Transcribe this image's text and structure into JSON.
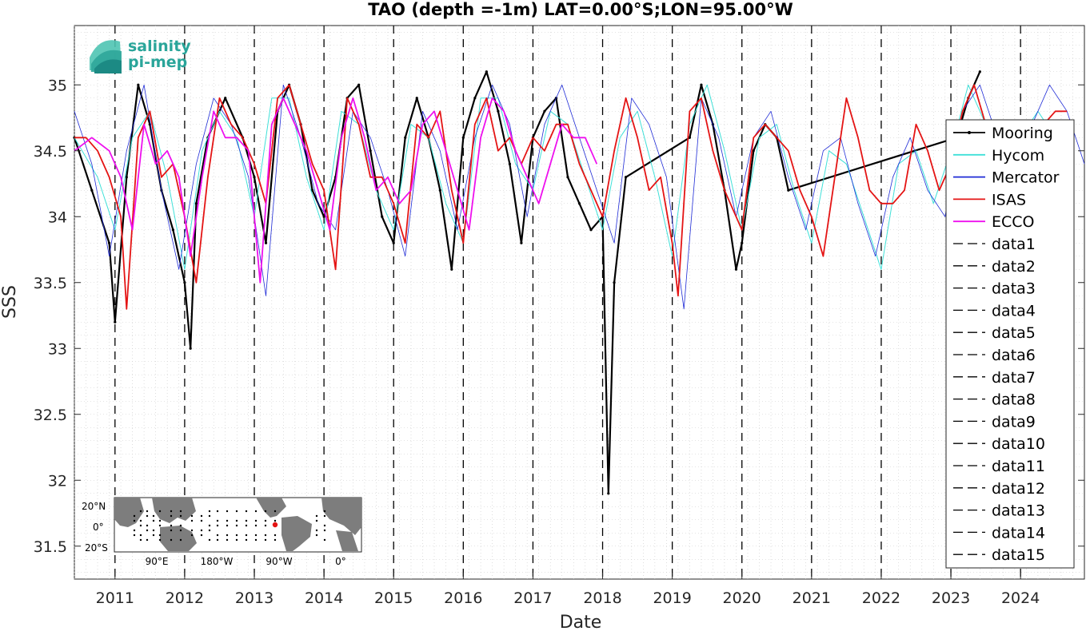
{
  "chart_data": {
    "type": "line",
    "title": "TAO (depth =-1m) LAT=0.00°S;LON=95.00°W",
    "xlabel": "Date",
    "ylabel": "SSS",
    "xlim": [
      "2010-06",
      "2024-12"
    ],
    "ylim": [
      31.25,
      35.45
    ],
    "x_ticks": [
      "2011",
      "2012",
      "2013",
      "2014",
      "2015",
      "2016",
      "2017",
      "2018",
      "2019",
      "2020",
      "2021",
      "2022",
      "2023",
      "2024"
    ],
    "y_ticks": [
      "31.5",
      "32",
      "32.5",
      "33",
      "33.5",
      "34",
      "34.5",
      "35"
    ],
    "grid": true,
    "legend_position": "right",
    "year_markers": [
      "2011-01",
      "2012-01",
      "2013-01",
      "2014-01",
      "2015-01",
      "2016-01",
      "2017-01",
      "2018-01",
      "2019-01",
      "2020-01",
      "2021-01",
      "2022-01",
      "2023-01",
      "2024-01"
    ],
    "series": [
      {
        "name": "Mooring",
        "color": "#000000",
        "style": "solid-dots",
        "x": [
          "2010-06",
          "2010-09",
          "2010-12",
          "2011-01",
          "2011-03",
          "2011-05",
          "2011-07",
          "2011-09",
          "2011-11",
          "2012-01",
          "2012-02",
          "2012-03",
          "2012-05",
          "2012-08",
          "2012-11",
          "2013-01",
          "2013-03",
          "2013-05",
          "2013-07",
          "2013-09",
          "2013-11",
          "2014-01",
          "2014-03",
          "2014-05",
          "2014-07",
          "2014-09",
          "2014-11",
          "2015-01",
          "2015-03",
          "2015-05",
          "2015-07",
          "2015-09",
          "2015-11",
          "2016-01",
          "2016-03",
          "2016-05",
          "2016-07",
          "2016-09",
          "2016-11",
          "2017-01",
          "2017-03",
          "2017-05",
          "2017-07",
          "2017-09",
          "2017-11",
          "2018-01",
          "2018-02",
          "2018-03",
          "2018-05",
          "2019-04",
          "2019-06",
          "2019-08",
          "2019-10",
          "2019-12",
          "2020-01",
          "2020-03",
          "2020-05",
          "2020-07",
          "2020-09",
          "2023-02",
          "2023-04",
          "2023-06"
        ],
        "y": [
          34.6,
          34.2,
          33.8,
          33.2,
          34.3,
          35.0,
          34.7,
          34.2,
          33.9,
          33.5,
          33.0,
          34.1,
          34.6,
          34.9,
          34.6,
          34.3,
          33.8,
          34.8,
          35.0,
          34.7,
          34.2,
          34.0,
          34.3,
          34.9,
          35.0,
          34.5,
          34.0,
          33.8,
          34.6,
          34.9,
          34.6,
          34.2,
          33.6,
          34.6,
          34.9,
          35.1,
          34.8,
          34.4,
          33.8,
          34.6,
          34.8,
          34.9,
          34.3,
          34.1,
          33.9,
          34.0,
          31.9,
          33.5,
          34.3,
          34.6,
          35.0,
          34.7,
          34.2,
          33.6,
          33.8,
          34.5,
          34.7,
          34.6,
          34.2,
          34.6,
          34.9,
          35.1
        ]
      },
      {
        "name": "Hycom",
        "color": "#3fe0d8",
        "style": "solid",
        "x": [
          "2010-06",
          "2010-10",
          "2011-01",
          "2011-04",
          "2011-07",
          "2011-10",
          "2012-01",
          "2012-04",
          "2012-07",
          "2012-10",
          "2013-01",
          "2013-04",
          "2013-07",
          "2013-10",
          "2014-01",
          "2014-04",
          "2014-07",
          "2014-10",
          "2015-01",
          "2015-04",
          "2015-07",
          "2015-10",
          "2016-01",
          "2016-04",
          "2016-07",
          "2016-10",
          "2017-01",
          "2017-04",
          "2017-07",
          "2017-10",
          "2018-01",
          "2018-04",
          "2018-07",
          "2018-10",
          "2019-01",
          "2019-04",
          "2019-07",
          "2019-10",
          "2020-01",
          "2020-04",
          "2020-07",
          "2020-10",
          "2021-01",
          "2021-04",
          "2021-07",
          "2021-10",
          "2022-01",
          "2022-04",
          "2022-07",
          "2022-10",
          "2023-01",
          "2023-04",
          "2023-07",
          "2023-10",
          "2024-01",
          "2024-04",
          "2024-07",
          "2024-10"
        ],
        "y": [
          34.6,
          34.3,
          33.9,
          34.6,
          34.8,
          34.3,
          33.6,
          34.5,
          34.8,
          34.6,
          34.0,
          34.9,
          34.9,
          34.3,
          33.9,
          34.8,
          34.7,
          34.2,
          33.9,
          34.7,
          34.6,
          34.1,
          33.8,
          34.9,
          34.9,
          34.4,
          34.2,
          34.8,
          34.7,
          34.3,
          33.9,
          34.6,
          34.8,
          34.3,
          33.7,
          34.7,
          35.0,
          34.5,
          33.9,
          34.6,
          34.7,
          34.2,
          33.8,
          34.5,
          34.4,
          34.0,
          33.6,
          34.4,
          34.5,
          34.1,
          34.5,
          35.0,
          34.7,
          34.3,
          34.6,
          34.8,
          34.6,
          34.4
        ]
      },
      {
        "name": "Mercator",
        "color": "#1f2bd6",
        "style": "solid",
        "x": [
          "2010-06",
          "2010-09",
          "2010-12",
          "2011-03",
          "2011-06",
          "2011-09",
          "2011-12",
          "2012-03",
          "2012-06",
          "2012-09",
          "2012-12",
          "2013-03",
          "2013-06",
          "2013-09",
          "2013-12",
          "2014-03",
          "2014-06",
          "2014-09",
          "2014-12",
          "2015-03",
          "2015-06",
          "2015-09",
          "2015-12",
          "2016-03",
          "2016-06",
          "2016-09",
          "2016-12",
          "2017-03",
          "2017-06",
          "2017-09",
          "2017-12",
          "2018-03",
          "2018-06",
          "2018-09",
          "2018-12",
          "2019-03",
          "2019-06",
          "2019-09",
          "2019-12",
          "2020-03",
          "2020-06",
          "2020-09",
          "2020-12",
          "2021-03",
          "2021-06",
          "2021-09",
          "2021-12",
          "2022-03",
          "2022-06",
          "2022-09",
          "2022-12",
          "2023-03",
          "2023-06",
          "2023-09",
          "2023-12",
          "2024-03",
          "2024-06",
          "2024-09",
          "2024-12"
        ],
        "y": [
          34.8,
          34.4,
          33.7,
          34.5,
          35.0,
          34.2,
          33.6,
          34.4,
          34.9,
          34.7,
          34.3,
          33.4,
          35.0,
          34.6,
          34.1,
          33.9,
          34.8,
          34.6,
          34.2,
          33.7,
          34.8,
          34.5,
          33.9,
          34.6,
          35.0,
          34.7,
          34.0,
          34.7,
          35.0,
          34.6,
          34.2,
          33.8,
          34.9,
          34.7,
          34.3,
          33.3,
          34.9,
          34.6,
          34.0,
          34.6,
          34.8,
          34.3,
          33.9,
          34.5,
          34.6,
          34.1,
          33.7,
          34.3,
          34.6,
          34.2,
          34.0,
          34.8,
          35.0,
          34.6,
          34.3,
          34.7,
          35.0,
          34.8,
          34.4
        ]
      },
      {
        "name": "ISAS",
        "color": "#e41414",
        "style": "solid",
        "x": [
          "2010-06",
          "2010-08",
          "2010-10",
          "2010-12",
          "2011-02",
          "2011-03",
          "2011-05",
          "2011-07",
          "2011-09",
          "2011-11",
          "2012-01",
          "2012-03",
          "2012-05",
          "2012-07",
          "2012-09",
          "2012-11",
          "2013-01",
          "2013-03",
          "2013-05",
          "2013-07",
          "2013-09",
          "2013-11",
          "2014-01",
          "2014-02",
          "2014-03",
          "2014-05",
          "2014-07",
          "2014-09",
          "2014-11",
          "2015-01",
          "2015-03",
          "2015-05",
          "2015-07",
          "2015-09",
          "2015-11",
          "2016-01",
          "2016-03",
          "2016-05",
          "2016-07",
          "2016-09",
          "2016-11",
          "2017-01",
          "2017-03",
          "2017-05",
          "2017-07",
          "2017-09",
          "2017-11",
          "2018-01",
          "2018-03",
          "2018-05",
          "2018-07",
          "2018-09",
          "2018-11",
          "2019-01",
          "2019-02",
          "2019-04",
          "2019-06",
          "2019-08",
          "2019-10",
          "2019-12",
          "2020-01",
          "2020-03",
          "2020-05",
          "2020-07",
          "2020-09",
          "2020-11",
          "2021-01",
          "2021-03",
          "2021-05",
          "2021-07",
          "2021-09",
          "2021-11",
          "2022-01",
          "2022-03",
          "2022-05",
          "2022-07",
          "2022-09",
          "2022-11",
          "2023-01",
          "2023-03",
          "2023-05",
          "2023-07",
          "2023-09",
          "2023-11",
          "2024-01",
          "2024-03",
          "2024-05",
          "2024-07",
          "2024-09"
        ],
        "y": [
          34.6,
          34.6,
          34.5,
          34.3,
          34.0,
          33.3,
          34.6,
          34.8,
          34.3,
          34.4,
          34.0,
          33.5,
          34.3,
          34.9,
          34.7,
          34.6,
          34.4,
          34.1,
          34.9,
          35.0,
          34.7,
          34.4,
          34.2,
          33.9,
          33.6,
          34.9,
          34.7,
          34.3,
          34.3,
          34.1,
          33.8,
          34.7,
          34.6,
          34.8,
          34.2,
          33.8,
          34.7,
          34.9,
          34.5,
          34.6,
          34.4,
          34.6,
          34.5,
          34.7,
          34.7,
          34.4,
          34.2,
          34.0,
          34.5,
          34.9,
          34.6,
          34.2,
          34.3,
          33.8,
          33.4,
          34.8,
          34.9,
          34.5,
          34.2,
          34.0,
          33.9,
          34.6,
          34.7,
          34.6,
          34.5,
          34.2,
          34.0,
          33.7,
          34.3,
          34.9,
          34.6,
          34.2,
          34.1,
          34.1,
          34.2,
          34.7,
          34.5,
          34.2,
          34.4,
          34.8,
          35.0,
          34.7,
          34.3,
          34.5,
          34.7,
          34.6,
          34.7,
          34.8,
          34.8
        ]
      },
      {
        "name": "ECCO",
        "color": "#ee10ee",
        "style": "solid",
        "x": [
          "2010-06",
          "2010-09",
          "2010-12",
          "2011-02",
          "2011-04",
          "2011-06",
          "2011-08",
          "2011-10",
          "2011-12",
          "2012-02",
          "2012-04",
          "2012-06",
          "2012-08",
          "2012-10",
          "2012-12",
          "2013-02",
          "2013-04",
          "2013-06",
          "2013-08",
          "2013-10",
          "2013-12",
          "2014-02",
          "2014-04",
          "2014-06",
          "2014-08",
          "2014-10",
          "2014-12",
          "2015-02",
          "2015-04",
          "2015-06",
          "2015-08",
          "2015-10",
          "2015-12",
          "2016-02",
          "2016-04",
          "2016-06",
          "2016-08",
          "2016-10",
          "2016-12",
          "2017-02",
          "2017-04",
          "2017-06",
          "2017-08",
          "2017-10",
          "2017-12"
        ],
        "y": [
          34.5,
          34.6,
          34.5,
          34.3,
          33.9,
          34.7,
          34.4,
          34.5,
          34.3,
          33.7,
          34.3,
          34.8,
          34.6,
          34.6,
          34.5,
          33.5,
          34.7,
          34.9,
          34.7,
          34.5,
          34.2,
          33.9,
          34.6,
          34.9,
          34.6,
          34.2,
          34.3,
          34.1,
          34.2,
          34.7,
          34.8,
          34.5,
          34.2,
          33.9,
          34.6,
          34.9,
          34.8,
          34.5,
          34.3,
          34.1,
          34.4,
          34.7,
          34.6,
          34.6,
          34.4
        ]
      }
    ],
    "legend": [
      "Mooring",
      "Hycom",
      "Mercator",
      "ISAS",
      "ECCO",
      "data1",
      "data2",
      "data3",
      "data4",
      "data5",
      "data6",
      "data7",
      "data8",
      "data9",
      "data10",
      "data11",
      "data12",
      "data13",
      "data14",
      "data15"
    ]
  },
  "logo": {
    "line1": "salinity",
    "line2": "pi-mep"
  },
  "inset_map": {
    "lat_labels": [
      "20°N",
      "0°",
      "20°S"
    ],
    "lon_labels": [
      "90°E",
      "180°W",
      "90°W",
      "0°"
    ]
  }
}
